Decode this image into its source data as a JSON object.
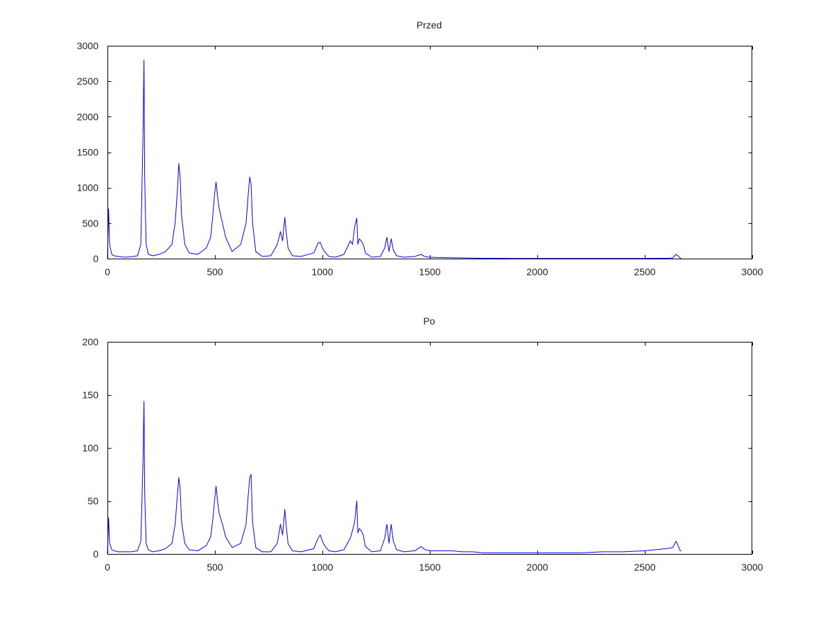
{
  "colors": {
    "series": "#0000ff",
    "axes": "#000000",
    "background": "#ffffff"
  },
  "chart_data": [
    {
      "type": "line",
      "title": "Przed",
      "xlabel": "",
      "ylabel": "",
      "xlim": [
        0,
        3000
      ],
      "ylim": [
        0,
        3000
      ],
      "xticks": [
        0,
        500,
        1000,
        1500,
        2000,
        2500,
        3000
      ],
      "yticks": [
        0,
        500,
        1000,
        1500,
        2000,
        2500,
        3000
      ],
      "grid": false,
      "series": [
        {
          "x": [
            0,
            5,
            10,
            20,
            30,
            50,
            80,
            110,
            140,
            155,
            165,
            170,
            173,
            176,
            180,
            190,
            210,
            240,
            270,
            300,
            315,
            325,
            332,
            338,
            345,
            360,
            380,
            420,
            460,
            480,
            490,
            498,
            505,
            512,
            520,
            535,
            550,
            580,
            620,
            645,
            655,
            662,
            668,
            675,
            690,
            720,
            760,
            790,
            805,
            815,
            825,
            830,
            840,
            860,
            900,
            960,
            980,
            990,
            1000,
            1010,
            1030,
            1060,
            1100,
            1130,
            1140,
            1150,
            1160,
            1165,
            1172,
            1180,
            1190,
            1200,
            1230,
            1270,
            1290,
            1300,
            1310,
            1320,
            1330,
            1345,
            1380,
            1430,
            1460,
            1470,
            1480,
            1500,
            1550,
            1600,
            1650,
            1700,
            1750,
            1800,
            1850,
            1900,
            2000,
            2100,
            2200,
            2300,
            2400,
            2500,
            2550,
            2600,
            2630,
            2645,
            2655,
            2665,
            2670
          ],
          "y": [
            0,
            700,
            200,
            60,
            40,
            30,
            20,
            25,
            40,
            200,
            1700,
            2800,
            1200,
            700,
            200,
            60,
            40,
            60,
            100,
            200,
            500,
            950,
            1340,
            1150,
            600,
            200,
            80,
            60,
            150,
            300,
            600,
            900,
            1080,
            880,
            700,
            500,
            300,
            100,
            200,
            500,
            900,
            1150,
            1050,
            500,
            100,
            30,
            40,
            200,
            380,
            250,
            580,
            420,
            150,
            40,
            30,
            80,
            220,
            230,
            150,
            100,
            30,
            20,
            60,
            250,
            200,
            450,
            570,
            200,
            280,
            250,
            200,
            80,
            20,
            30,
            150,
            300,
            100,
            280,
            120,
            40,
            20,
            30,
            60,
            40,
            25,
            20,
            15,
            12,
            10,
            8,
            5,
            5,
            4,
            3,
            3,
            2,
            2,
            2,
            2,
            3,
            5,
            5,
            10,
            60,
            40,
            5,
            0
          ]
        }
      ]
    },
    {
      "type": "line",
      "title": "Po",
      "xlabel": "",
      "ylabel": "",
      "xlim": [
        0,
        3000
      ],
      "ylim": [
        0,
        200
      ],
      "xticks": [
        0,
        500,
        1000,
        1500,
        2000,
        2500,
        3000
      ],
      "yticks": [
        0,
        50,
        100,
        150,
        200
      ],
      "grid": false,
      "series": [
        {
          "x": [
            0,
            5,
            10,
            20,
            30,
            50,
            80,
            110,
            140,
            155,
            165,
            170,
            173,
            176,
            180,
            190,
            210,
            240,
            270,
            300,
            315,
            325,
            332,
            338,
            345,
            360,
            380,
            420,
            460,
            480,
            490,
            498,
            505,
            512,
            520,
            535,
            550,
            580,
            620,
            645,
            655,
            662,
            668,
            675,
            690,
            720,
            760,
            790,
            805,
            815,
            825,
            830,
            840,
            860,
            900,
            960,
            980,
            990,
            1000,
            1010,
            1030,
            1060,
            1100,
            1130,
            1140,
            1150,
            1160,
            1165,
            1172,
            1180,
            1190,
            1200,
            1230,
            1270,
            1290,
            1300,
            1310,
            1320,
            1330,
            1345,
            1380,
            1430,
            1460,
            1470,
            1480,
            1500,
            1550,
            1600,
            1650,
            1700,
            1750,
            1800,
            1850,
            1900,
            2000,
            2100,
            2200,
            2300,
            2400,
            2500,
            2550,
            2600,
            2630,
            2645,
            2655,
            2665,
            2670
          ],
          "y": [
            0,
            34,
            10,
            4,
            3,
            2,
            2,
            2,
            3,
            12,
            85,
            144,
            60,
            36,
            10,
            4,
            2,
            3,
            5,
            10,
            28,
            55,
            72,
            62,
            30,
            10,
            4,
            3,
            8,
            16,
            32,
            50,
            64,
            50,
            38,
            28,
            16,
            6,
            10,
            28,
            55,
            72,
            75,
            30,
            6,
            2,
            2,
            10,
            28,
            18,
            42,
            30,
            10,
            3,
            2,
            5,
            15,
            18,
            12,
            8,
            3,
            2,
            4,
            15,
            22,
            30,
            50,
            20,
            24,
            22,
            18,
            7,
            2,
            3,
            15,
            28,
            10,
            28,
            12,
            4,
            2,
            3,
            7,
            5,
            4,
            3,
            3,
            3,
            2,
            2,
            1,
            1,
            1,
            1,
            1,
            1,
            1,
            2,
            2,
            3,
            4,
            5,
            6,
            12,
            8,
            3,
            3
          ]
        }
      ]
    }
  ]
}
